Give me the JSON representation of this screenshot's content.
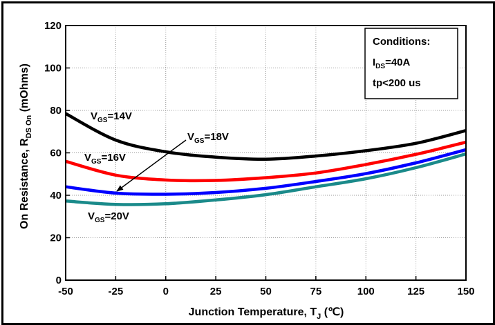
{
  "chart_data": {
    "type": "line",
    "xlabel": {
      "main": "Junction Temperature, T",
      "sub": "J",
      "unit": "(℃)"
    },
    "ylabel": {
      "main": "On Resistance, R",
      "sub": "DS On",
      "unit": "(mOhms)"
    },
    "xlim": [
      -50,
      150
    ],
    "ylim": [
      0,
      120
    ],
    "x_ticks": [
      "-50",
      "-25",
      "0",
      "25",
      "50",
      "75",
      "100",
      "125",
      "150"
    ],
    "y_ticks": [
      "0",
      "20",
      "40",
      "60",
      "80",
      "100",
      "120"
    ],
    "grid": true,
    "x": [
      -50,
      -25,
      0,
      25,
      50,
      75,
      100,
      125,
      150
    ],
    "series": [
      {
        "key": "vgs14",
        "color": "#000000",
        "values": [
          78.5,
          66,
          60.5,
          58,
          57,
          58.5,
          61,
          64.5,
          70.5
        ]
      },
      {
        "key": "vgs16",
        "color": "#ff0000",
        "values": [
          56,
          49.5,
          47.2,
          47,
          48.3,
          50.5,
          54.5,
          59.3,
          65
        ]
      },
      {
        "key": "vgs18",
        "color": "#0000ff",
        "values": [
          44,
          41,
          40.5,
          41.3,
          43.3,
          46.5,
          50.2,
          55.3,
          61.5
        ]
      },
      {
        "key": "vgs20",
        "color": "#1a8a8a",
        "values": [
          37.3,
          35.7,
          36,
          37.8,
          40.3,
          44,
          47.8,
          53,
          59.5
        ]
      }
    ],
    "annotations": [
      {
        "key": "vgs14",
        "main": "V",
        "sub": "GS",
        "rest": "=14V"
      },
      {
        "key": "vgs16",
        "main": "V",
        "sub": "GS",
        "rest": "=16V"
      },
      {
        "key": "vgs18",
        "main": "V",
        "sub": "GS",
        "rest": "=18V"
      },
      {
        "key": "vgs20",
        "main": "V",
        "sub": "GS",
        "rest": "=20V"
      }
    ],
    "conditions": {
      "title": "Conditions:",
      "ids": {
        "main": "I",
        "sub": "DS",
        "rest": "=40A"
      },
      "tp": "tp<200 us"
    }
  }
}
